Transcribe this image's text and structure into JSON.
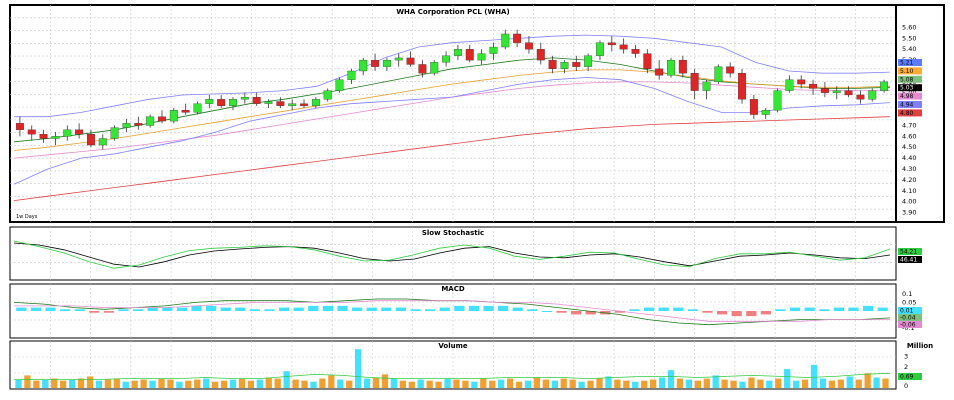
{
  "chart_data": [
    {
      "type": "candlestick",
      "title": "WHA Corporation PCL (WHA)",
      "period_label": "1w Days",
      "y_ticks": [
        "5.60",
        "5.50",
        "5.40",
        "5.30",
        "5.20",
        "5.10",
        "5.00",
        "4.90",
        "4.80",
        "4.70",
        "4.60",
        "4.50",
        "4.40",
        "4.30",
        "4.20",
        "4.10",
        "4.00",
        "3.90"
      ],
      "ylim": [
        3.85,
        5.65
      ],
      "candles": [
        [
          4.72,
          4.78,
          4.6,
          4.66
        ],
        [
          4.66,
          4.7,
          4.56,
          4.62
        ],
        [
          4.62,
          4.66,
          4.54,
          4.58
        ],
        [
          4.58,
          4.64,
          4.52,
          4.6
        ],
        [
          4.6,
          4.7,
          4.56,
          4.66
        ],
        [
          4.66,
          4.72,
          4.58,
          4.62
        ],
        [
          4.62,
          4.66,
          4.5,
          4.52
        ],
        [
          4.52,
          4.62,
          4.48,
          4.58
        ],
        [
          4.58,
          4.7,
          4.56,
          4.68
        ],
        [
          4.68,
          4.76,
          4.64,
          4.72
        ],
        [
          4.72,
          4.78,
          4.66,
          4.7
        ],
        [
          4.7,
          4.8,
          4.68,
          4.78
        ],
        [
          4.78,
          4.84,
          4.72,
          4.74
        ],
        [
          4.74,
          4.86,
          4.72,
          4.84
        ],
        [
          4.84,
          4.9,
          4.8,
          4.82
        ],
        [
          4.82,
          4.92,
          4.8,
          4.9
        ],
        [
          4.9,
          4.98,
          4.86,
          4.94
        ],
        [
          4.94,
          4.98,
          4.86,
          4.88
        ],
        [
          4.88,
          4.96,
          4.84,
          4.94
        ],
        [
          4.94,
          5.0,
          4.9,
          4.96
        ],
        [
          4.96,
          5.0,
          4.88,
          4.9
        ],
        [
          4.9,
          4.94,
          4.86,
          4.92
        ],
        [
          4.92,
          4.96,
          4.86,
          4.88
        ],
        [
          4.88,
          4.94,
          4.84,
          4.9
        ],
        [
          4.9,
          4.94,
          4.86,
          4.88
        ],
        [
          4.88,
          4.96,
          4.86,
          4.94
        ],
        [
          4.94,
          5.04,
          4.92,
          5.02
        ],
        [
          5.02,
          5.14,
          5.0,
          5.12
        ],
        [
          5.12,
          5.22,
          5.08,
          5.2
        ],
        [
          5.2,
          5.32,
          5.16,
          5.3
        ],
        [
          5.3,
          5.36,
          5.2,
          5.24
        ],
        [
          5.24,
          5.32,
          5.2,
          5.3
        ],
        [
          5.3,
          5.36,
          5.24,
          5.32
        ],
        [
          5.32,
          5.38,
          5.24,
          5.26
        ],
        [
          5.26,
          5.3,
          5.14,
          5.18
        ],
        [
          5.18,
          5.3,
          5.16,
          5.28
        ],
        [
          5.28,
          5.38,
          5.24,
          5.34
        ],
        [
          5.34,
          5.44,
          5.3,
          5.4
        ],
        [
          5.4,
          5.44,
          5.28,
          5.3
        ],
        [
          5.3,
          5.4,
          5.26,
          5.36
        ],
        [
          5.36,
          5.46,
          5.3,
          5.42
        ],
        [
          5.42,
          5.58,
          5.4,
          5.54
        ],
        [
          5.54,
          5.58,
          5.42,
          5.46
        ],
        [
          5.46,
          5.52,
          5.36,
          5.4
        ],
        [
          5.4,
          5.46,
          5.26,
          5.3
        ],
        [
          5.3,
          5.34,
          5.18,
          5.22
        ],
        [
          5.22,
          5.3,
          5.18,
          5.28
        ],
        [
          5.28,
          5.34,
          5.2,
          5.24
        ],
        [
          5.24,
          5.36,
          5.2,
          5.34
        ],
        [
          5.34,
          5.48,
          5.3,
          5.46
        ],
        [
          5.46,
          5.52,
          5.38,
          5.44
        ],
        [
          5.44,
          5.5,
          5.36,
          5.4
        ],
        [
          5.4,
          5.44,
          5.32,
          5.36
        ],
        [
          5.36,
          5.4,
          5.18,
          5.22
        ],
        [
          5.22,
          5.3,
          5.12,
          5.16
        ],
        [
          5.16,
          5.32,
          5.14,
          5.3
        ],
        [
          5.3,
          5.34,
          5.14,
          5.18
        ],
        [
          5.18,
          5.22,
          4.94,
          5.02
        ],
        [
          5.02,
          5.12,
          4.94,
          5.1
        ],
        [
          5.1,
          5.26,
          5.08,
          5.24
        ],
        [
          5.24,
          5.28,
          5.14,
          5.18
        ],
        [
          5.18,
          5.22,
          4.9,
          4.94
        ],
        [
          4.94,
          4.98,
          4.76,
          4.8
        ],
        [
          4.8,
          4.86,
          4.76,
          4.84
        ],
        [
          4.84,
          5.04,
          4.82,
          5.02
        ],
        [
          5.02,
          5.16,
          5.0,
          5.12
        ],
        [
          5.12,
          5.16,
          5.04,
          5.08
        ],
        [
          5.08,
          5.12,
          4.98,
          5.04
        ],
        [
          5.04,
          5.1,
          4.96,
          5.0
        ],
        [
          5.0,
          5.06,
          4.94,
          5.02
        ],
        [
          5.02,
          5.06,
          4.96,
          4.98
        ],
        [
          4.98,
          5.02,
          4.9,
          4.94
        ],
        [
          4.94,
          5.04,
          4.92,
          5.02
        ],
        [
          5.02,
          5.12,
          5.0,
          5.1
        ]
      ],
      "series": [
        {
          "name": "",
          "color": "#1a7a1a",
          "values": [
            4.55,
            4.58,
            4.62,
            4.66,
            4.72,
            4.78,
            4.84,
            4.9,
            4.94,
            4.99,
            5.04,
            5.1,
            5.16,
            5.22,
            5.26,
            5.3,
            5.32,
            5.3,
            5.26,
            5.2,
            5.14,
            5.1,
            5.08,
            5.06,
            5.04,
            5.04,
            5.05
          ]
        },
        {
          "name": "",
          "color": "#e8a030",
          "values": [
            4.47,
            4.5,
            4.54,
            4.58,
            4.63,
            4.68,
            4.73,
            4.78,
            4.83,
            4.88,
            4.93,
            4.98,
            5.03,
            5.08,
            5.12,
            5.16,
            5.19,
            5.21,
            5.21,
            5.19,
            5.15,
            5.11,
            5.08,
            5.06,
            5.05,
            5.05,
            5.06
          ]
        },
        {
          "name": "",
          "color": "#e38ad0",
          "values": [
            4.4,
            4.43,
            4.46,
            4.49,
            4.53,
            4.57,
            4.61,
            4.66,
            4.71,
            4.76,
            4.81,
            4.86,
            4.91,
            4.96,
            5.0,
            5.04,
            5.07,
            5.09,
            5.1,
            5.1,
            5.09,
            5.07,
            5.05,
            5.03,
            5.02,
            5.02,
            5.02
          ]
        },
        {
          "name": "",
          "color": "#e04040",
          "values": [
            4.01,
            4.05,
            4.09,
            4.13,
            4.17,
            4.21,
            4.25,
            4.29,
            4.33,
            4.37,
            4.41,
            4.45,
            4.49,
            4.53,
            4.57,
            4.61,
            4.64,
            4.67,
            4.69,
            4.71,
            4.72,
            4.73,
            4.74,
            4.75,
            4.76,
            4.77,
            4.78
          ]
        },
        {
          "name": "",
          "color": "#8080ff",
          "values": [
            4.78,
            4.78,
            4.82,
            4.88,
            4.94,
            4.98,
            4.99,
            5.0,
            5.02,
            5.06,
            5.18,
            5.32,
            5.42,
            5.46,
            5.48,
            5.5,
            5.52,
            5.53,
            5.52,
            5.5,
            5.46,
            5.42,
            5.28,
            5.2,
            5.18,
            5.18,
            5.19
          ]
        },
        {
          "name": "",
          "color": "#8080ff",
          "values": [
            4.16,
            4.3,
            4.4,
            4.44,
            4.5,
            4.56,
            4.64,
            4.74,
            4.8,
            4.86,
            4.9,
            4.92,
            4.94,
            4.96,
            5.02,
            5.08,
            5.12,
            5.14,
            5.12,
            5.04,
            4.92,
            4.82,
            4.82,
            4.86,
            4.88,
            4.89,
            4.91
          ]
        }
      ],
      "right_labels": [
        "5.21",
        "5.10",
        "5.08",
        "5.03",
        "4.98",
        "4.94",
        "4.80"
      ]
    },
    {
      "type": "line",
      "title": "Slow Stochastic",
      "ylim": [
        0,
        100
      ],
      "series": [
        {
          "name": "",
          "color": "#000000",
          "values": [
            85,
            80,
            68,
            50,
            32,
            25,
            38,
            55,
            65,
            70,
            74,
            76,
            72,
            60,
            46,
            40,
            45,
            60,
            72,
            76,
            60,
            50,
            48,
            55,
            58,
            50,
            38,
            28,
            40,
            52,
            55,
            60,
            55,
            48,
            46,
            55
          ]
        },
        {
          "name": "",
          "color": "#2ecc40",
          "values": [
            90,
            76,
            60,
            38,
            22,
            30,
            50,
            66,
            72,
            74,
            78,
            76,
            68,
            52,
            40,
            42,
            56,
            72,
            80,
            72,
            52,
            44,
            52,
            62,
            60,
            44,
            30,
            26,
            46,
            58,
            58,
            62,
            52,
            42,
            48,
            70
          ]
        }
      ],
      "right_labels": [
        "54.21",
        "46.41"
      ]
    },
    {
      "type": "bar_line",
      "title": "MACD",
      "y_ticks": [
        "0.1",
        "0.05",
        "-0.1"
      ],
      "ylim": [
        -0.14,
        0.14
      ],
      "histogram": [
        0.02,
        0.02,
        0.02,
        0.01,
        0.01,
        -0.01,
        -0.01,
        0.01,
        0.01,
        0.02,
        0.02,
        0.02,
        0.03,
        0.03,
        0.02,
        0.02,
        0.01,
        0.01,
        0.02,
        0.02,
        0.03,
        0.03,
        0.03,
        0.02,
        0.02,
        0.02,
        0.02,
        0.01,
        0.01,
        0.02,
        0.03,
        0.03,
        0.03,
        0.03,
        0.02,
        0.01,
        0.0,
        -0.01,
        -0.02,
        -0.02,
        -0.02,
        -0.01,
        0.01,
        0.02,
        0.02,
        0.02,
        0.01,
        -0.01,
        -0.02,
        -0.03,
        -0.03,
        -0.02,
        0.01,
        0.02,
        0.02,
        0.01,
        0.02,
        0.02,
        0.03,
        0.02
      ],
      "series": [
        {
          "name": "",
          "color": "#1a7a1a",
          "values": [
            0.05,
            0.04,
            0.02,
            0.01,
            0.02,
            0.03,
            0.05,
            0.06,
            0.06,
            0.06,
            0.05,
            0.06,
            0.07,
            0.07,
            0.06,
            0.06,
            0.05,
            0.04,
            0.02,
            0.0,
            -0.02,
            -0.05,
            -0.07,
            -0.08,
            -0.07,
            -0.06,
            -0.05,
            -0.05,
            -0.05,
            -0.04
          ]
        },
        {
          "name": "",
          "color": "#e38ad0",
          "values": [
            0.03,
            0.03,
            0.03,
            0.02,
            0.02,
            0.02,
            0.03,
            0.04,
            0.05,
            0.05,
            0.05,
            0.05,
            0.06,
            0.06,
            0.06,
            0.06,
            0.05,
            0.05,
            0.04,
            0.02,
            0.0,
            -0.02,
            -0.04,
            -0.06,
            -0.06,
            -0.06,
            -0.06,
            -0.05,
            -0.05,
            -0.05
          ]
        }
      ],
      "right_labels": [
        "0.01",
        "-0.04",
        "-0.06"
      ]
    },
    {
      "type": "bar",
      "title": "Volume",
      "unit": "Million",
      "y_ticks": [
        "3",
        "2",
        "1",
        "0"
      ],
      "ylim": [
        0,
        4
      ],
      "values": [
        0.8,
        1.2,
        0.7,
        0.8,
        0.9,
        0.7,
        0.8,
        0.9,
        1.1,
        0.7,
        0.8,
        0.9,
        0.6,
        0.7,
        0.8,
        0.7,
        0.9,
        0.8,
        0.6,
        0.7,
        0.8,
        0.9,
        0.6,
        0.7,
        0.8,
        0.9,
        0.7,
        0.8,
        1.0,
        0.9,
        1.6,
        0.8,
        0.7,
        0.6,
        0.9,
        1.2,
        0.8,
        0.7,
        3.7,
        0.9,
        1.0,
        1.3,
        0.9,
        0.7,
        0.6,
        0.8,
        0.7,
        0.6,
        0.9,
        0.8,
        0.7,
        0.6,
        0.9,
        0.7,
        0.8,
        0.9,
        0.6,
        0.7,
        1.0,
        0.8,
        0.7,
        0.9,
        0.8,
        0.6,
        0.7,
        0.9,
        1.1,
        0.8,
        0.7,
        0.6,
        0.7,
        0.8,
        1.0,
        1.7,
        0.9,
        0.8,
        0.7,
        0.9,
        1.2,
        0.8,
        0.7,
        0.6,
        1.0,
        0.8,
        0.7,
        0.9,
        1.8,
        0.7,
        0.8,
        2.2,
        0.9,
        0.7,
        0.8,
        1.1,
        0.8,
        1.4,
        1.0,
        0.9
      ],
      "volume_ma": [
        0.8,
        0.8,
        0.8,
        0.8,
        0.9,
        0.9,
        0.9,
        1.0,
        0.9,
        0.9,
        1.1,
        1.3,
        1.2,
        1.0,
        0.9,
        0.9,
        0.9,
        0.9,
        1.0,
        1.0,
        1.0,
        0.9,
        1.0,
        1.1,
        1.1,
        1.0,
        1.1,
        1.2,
        1.1,
        1.0,
        1.1,
        1.3,
        1.4
      ],
      "right_labels": [
        "0.69"
      ]
    }
  ]
}
